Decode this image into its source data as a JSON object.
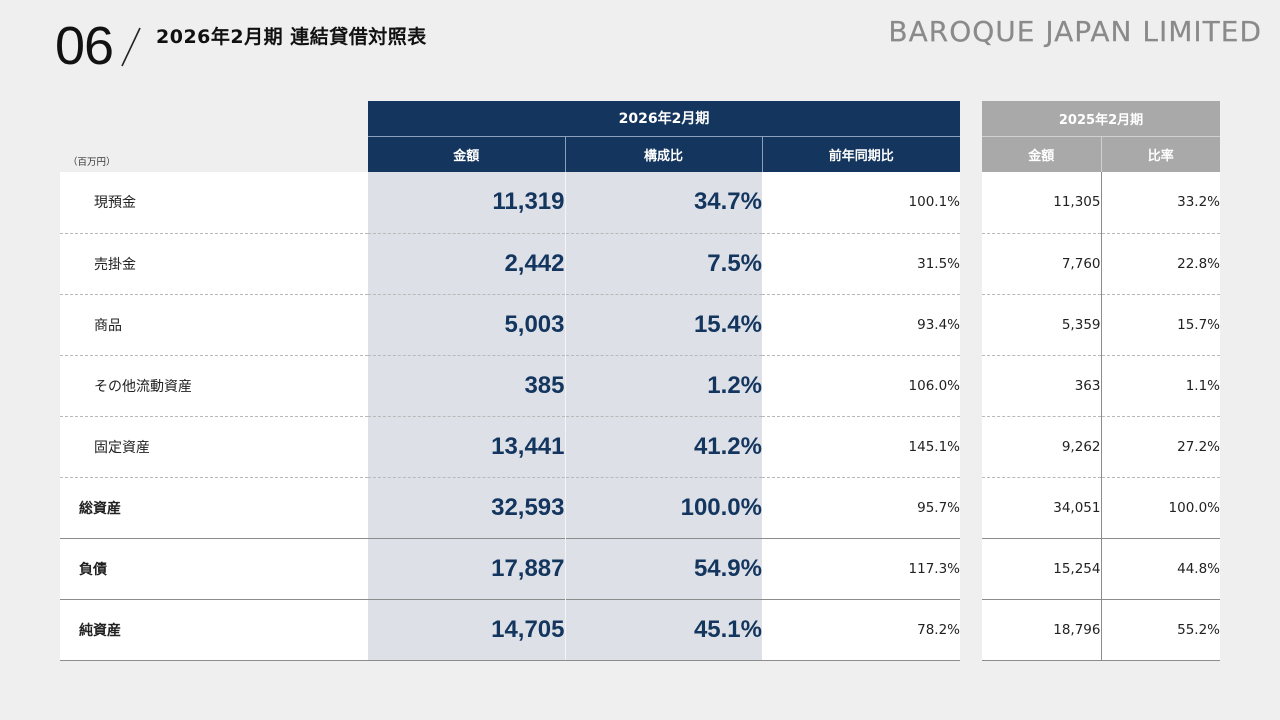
{
  "header": {
    "slide_number": "06",
    "title": "2026年2月期 連結貸借対照表",
    "brand": "BAROQUE JAPAN LIMITED"
  },
  "table": {
    "unit": "（百万円）",
    "current_period": "2026年2月期",
    "prior_period": "2025年2月期",
    "columns": {
      "amount": "金額",
      "composition": "構成比",
      "yoy": "前年同期比",
      "prior_amount": "金額",
      "prior_ratio": "比率"
    },
    "rows": [
      {
        "label": "現預金",
        "amount": "11,319",
        "composition": "34.7%",
        "yoy": "100.1%",
        "prior_amount": "11,305",
        "prior_ratio": "33.2%"
      },
      {
        "label": "売掛金",
        "amount": "2,442",
        "composition": "7.5%",
        "yoy": "31.5%",
        "prior_amount": "7,760",
        "prior_ratio": "22.8%"
      },
      {
        "label": "商品",
        "amount": "5,003",
        "composition": "15.4%",
        "yoy": "93.4%",
        "prior_amount": "5,359",
        "prior_ratio": "15.7%"
      },
      {
        "label": "その他流動資産",
        "amount": "385",
        "composition": "1.2%",
        "yoy": "106.0%",
        "prior_amount": "363",
        "prior_ratio": "1.1%"
      },
      {
        "label": "固定資産",
        "amount": "13,441",
        "composition": "41.2%",
        "yoy": "145.1%",
        "prior_amount": "9,262",
        "prior_ratio": "27.2%"
      },
      {
        "label": "総資産",
        "amount": "32,593",
        "composition": "100.0%",
        "yoy": "95.7%",
        "prior_amount": "34,051",
        "prior_ratio": "100.0%"
      },
      {
        "label": "負債",
        "amount": "17,887",
        "composition": "54.9%",
        "yoy": "117.3%",
        "prior_amount": "15,254",
        "prior_ratio": "44.8%"
      },
      {
        "label": "純資産",
        "amount": "14,705",
        "composition": "45.1%",
        "yoy": "78.2%",
        "prior_amount": "18,796",
        "prior_ratio": "55.2%"
      }
    ]
  },
  "colors": {
    "navy": "#13355e",
    "highlight_bg": "#dde1e7",
    "prior_header": "#a9a9a9",
    "background": "#efefef"
  }
}
